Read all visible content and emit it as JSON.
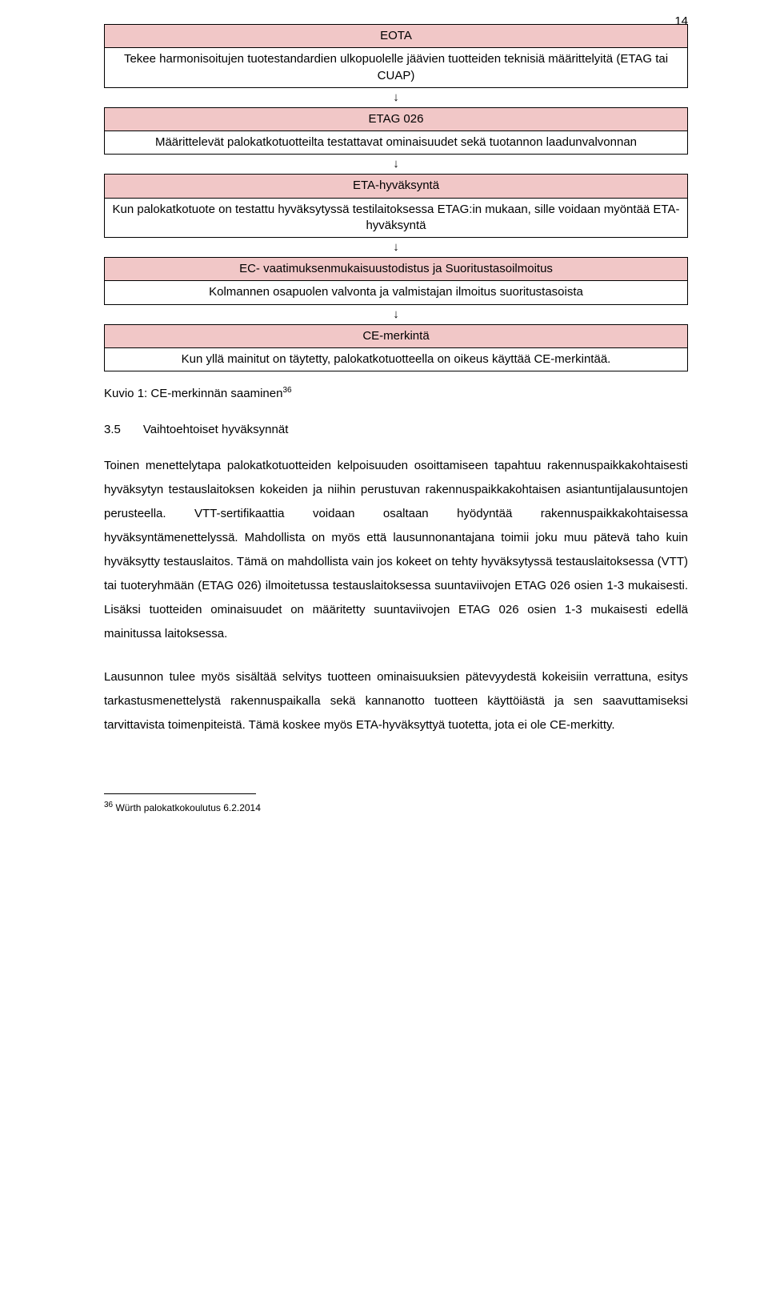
{
  "page_number": "14",
  "colors": {
    "pink": "#f1c7c7",
    "white": "#ffffff",
    "border": "#000000",
    "text": "#000000"
  },
  "typography": {
    "body_fontsize": 15,
    "footnote_fontsize": 12,
    "sup_fontsize": 10,
    "line_height_body": 2.0,
    "line_height_cell": 1.35,
    "font_family": "Arial"
  },
  "arrow_glyph": "↓",
  "flow": {
    "eota": {
      "header": "EOTA",
      "body": "Tekee harmonisoitujen tuotestandardien ulkopuolelle jäävien tuotteiden teknisiä määrittelyitä (ETAG tai CUAP)"
    },
    "etag": {
      "header": "ETAG 026",
      "body": "Määrittelevät palokatkotuotteilta testattavat ominaisuudet sekä tuotannon laadunvalvonnan"
    },
    "eta": {
      "header": "ETA-hyväksyntä",
      "body": "Kun palokatkotuote on testattu hyväksytyssä testilaitoksessa ETAG:in mukaan, sille voidaan myöntää ETA-hyväksyntä"
    },
    "ec": {
      "header": "EC- vaatimuksenmukaisuustodistus ja Suoritustasoilmoitus",
      "body": "Kolmannen osapuolen valvonta ja valmistajan ilmoitus suoritustasoista"
    },
    "ce": {
      "header": "CE-merkintä",
      "body": "Kun yllä mainitut on täytetty, palokatkotuotteella on oikeus käyttää CE-merkintää."
    }
  },
  "caption": {
    "text": "Kuvio 1: CE-merkinnän saaminen",
    "sup": "36"
  },
  "section": {
    "number": "3.5",
    "title": "Vaihtoehtoiset hyväksynnät"
  },
  "paragraph1": "Toinen menettelytapa palokatkotuotteiden kelpoisuuden osoittamiseen tapahtuu rakennuspaikkakohtaisesti hyväksytyn testauslaitoksen kokeiden ja niihin perustuvan rakennuspaikkakohtaisen asiantuntijalausuntojen perusteella. VTT-sertifikaattia voidaan osaltaan hyödyntää rakennuspaikkakohtaisessa hyväksyntämenettelyssä. Mahdollista on myös että lausunnonantajana toimii joku muu pätevä taho kuin hyväksytty testauslaitos. Tämä on mahdollista vain jos kokeet on tehty hyväksytyssä testauslaitoksessa (VTT) tai tuoteryhmään (ETAG 026) ilmoitetussa testauslaitoksessa suuntaviivojen ETAG 026 osien 1-3 mukaisesti. Lisäksi tuotteiden ominaisuudet on määritetty suuntaviivojen ETAG 026 osien 1-3 mukaisesti edellä mainitussa laitoksessa.",
  "paragraph2": "Lausunnon tulee myös sisältää selvitys tuotteen ominaisuuksien pätevyydestä kokeisiin verrattuna, esitys tarkastusmenettelystä rakennuspaikalla sekä kannanotto tuotteen käyttöiästä ja sen saavuttamiseksi tarvittavista toimenpiteistä. Tämä koskee myös ETA-hyväksyttyä tuotetta, jota ei ole CE-merkitty.",
  "footnote": {
    "marker": "36",
    "text": " Würth palokatkokoulutus 6.2.2014"
  }
}
